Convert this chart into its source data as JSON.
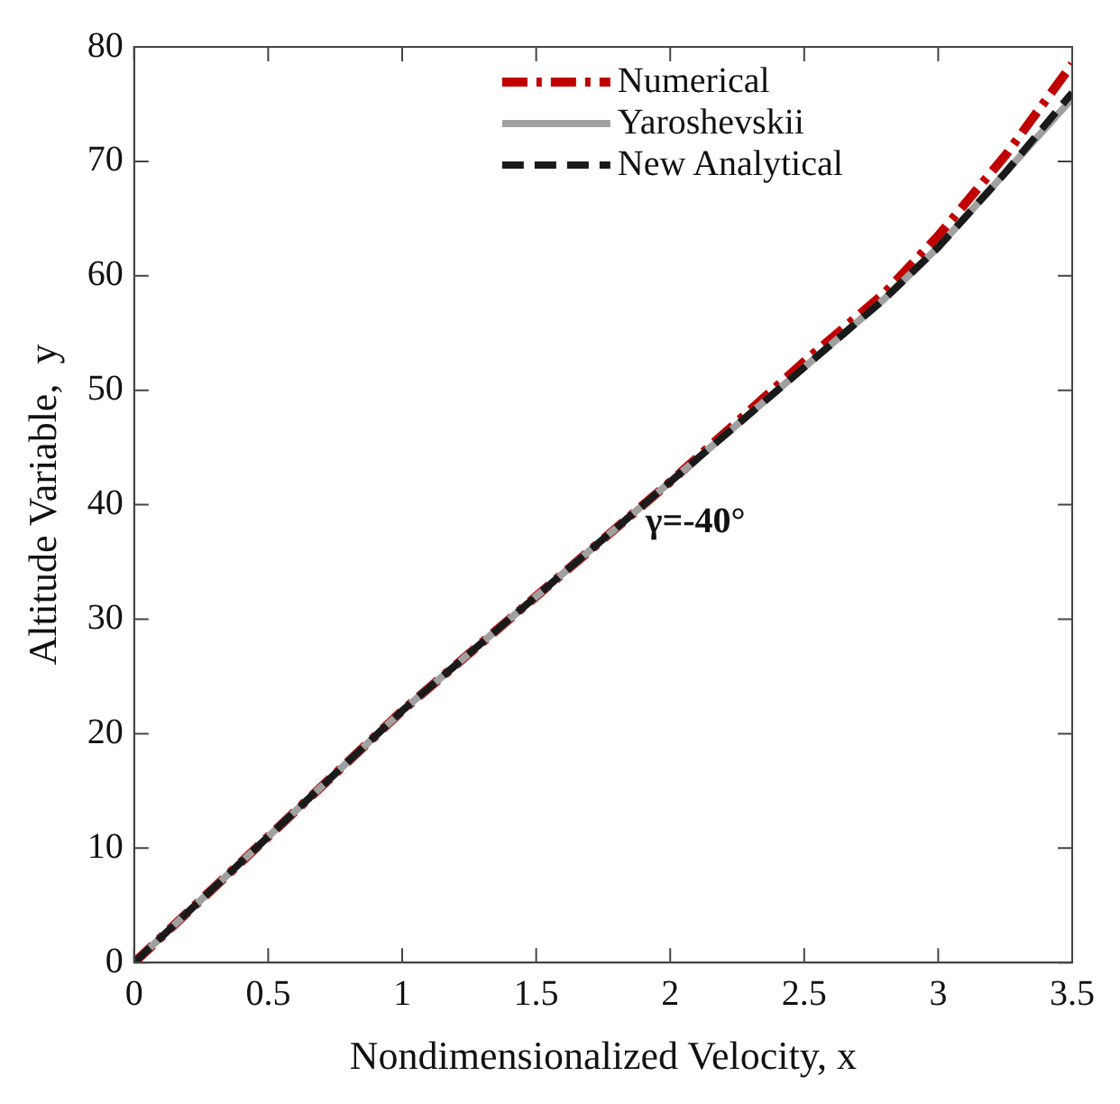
{
  "chart_data": {
    "type": "line",
    "xlabel": "Nondimensionalized Velocity, x",
    "ylabel": "Altitude Variable,  y",
    "xlim": [
      0,
      3.5
    ],
    "xticks": [
      0,
      0.5,
      1,
      1.5,
      2,
      2.5,
      3,
      3.5
    ],
    "ylim": [
      0,
      80
    ],
    "yticks": [
      0,
      10,
      20,
      30,
      40,
      50,
      60,
      70,
      80
    ],
    "grid": false,
    "legend": "top",
    "marker": "none",
    "annotations": [
      "γ=-40°"
    ],
    "series": [
      {
        "name": "Numerical",
        "color": "#c00000",
        "line_style": "dashdot",
        "x": [
          0,
          0.5,
          1,
          1.5,
          2,
          2.5,
          2.8,
          3,
          3.25,
          3.5
        ],
        "values": [
          0,
          11,
          22,
          32,
          42,
          52.5,
          58.5,
          63.5,
          70.5,
          78.5
        ]
      },
      {
        "name": "Yaroshevskii",
        "color": "#a0a0a0",
        "line_style": "solid",
        "x": [
          0,
          0.5,
          1,
          1.5,
          2,
          2.5,
          2.8,
          3,
          3.25,
          3.5
        ],
        "values": [
          0,
          11,
          22,
          32,
          42,
          52,
          58,
          62.5,
          69,
          75.5
        ]
      },
      {
        "name": "New Analytical",
        "color": "#1a1a1a",
        "line_style": "dashed",
        "x": [
          0,
          0.5,
          1,
          1.5,
          2,
          2.5,
          2.8,
          3,
          3.25,
          3.5
        ],
        "values": [
          0,
          11,
          22,
          32,
          42,
          52,
          58,
          62.5,
          69,
          76
        ]
      }
    ]
  }
}
